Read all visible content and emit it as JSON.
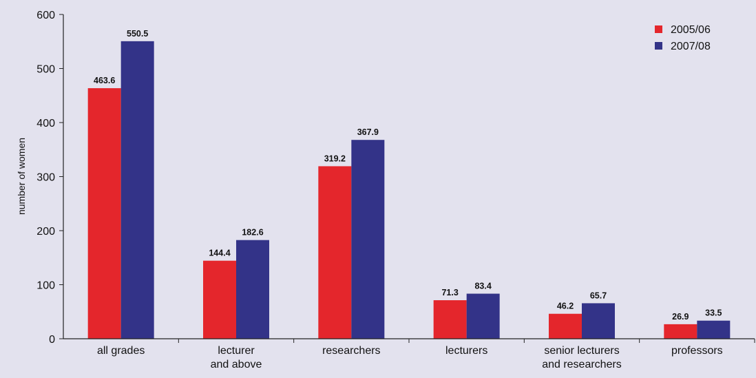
{
  "chart_data": {
    "type": "bar",
    "title": "",
    "xlabel": "",
    "ylabel": "number of women",
    "ylim": [
      0,
      600
    ],
    "yticks": [
      0,
      100,
      200,
      300,
      400,
      500,
      600
    ],
    "grid": false,
    "legend_position": "top-right",
    "categories": [
      [
        "all grades"
      ],
      [
        "lecturer",
        "and above"
      ],
      [
        "researchers"
      ],
      [
        "lecturers"
      ],
      [
        "senior lecturers",
        "and researchers"
      ],
      [
        "professors"
      ]
    ],
    "series": [
      {
        "name": "2005/06",
        "color": "#e4262c",
        "values": [
          463.6,
          144.4,
          319.2,
          71.3,
          46.2,
          26.9
        ]
      },
      {
        "name": "2007/08",
        "color": "#333388",
        "values": [
          550.5,
          182.6,
          367.9,
          83.4,
          65.7,
          33.5
        ]
      }
    ],
    "value_labels": [
      [
        "463.6",
        "144.4",
        "319.2",
        "71.3",
        "46.2",
        "26.9"
      ],
      [
        "550.5",
        "182.6",
        "367.9",
        "83.4",
        "65.7",
        "33.5"
      ]
    ]
  }
}
